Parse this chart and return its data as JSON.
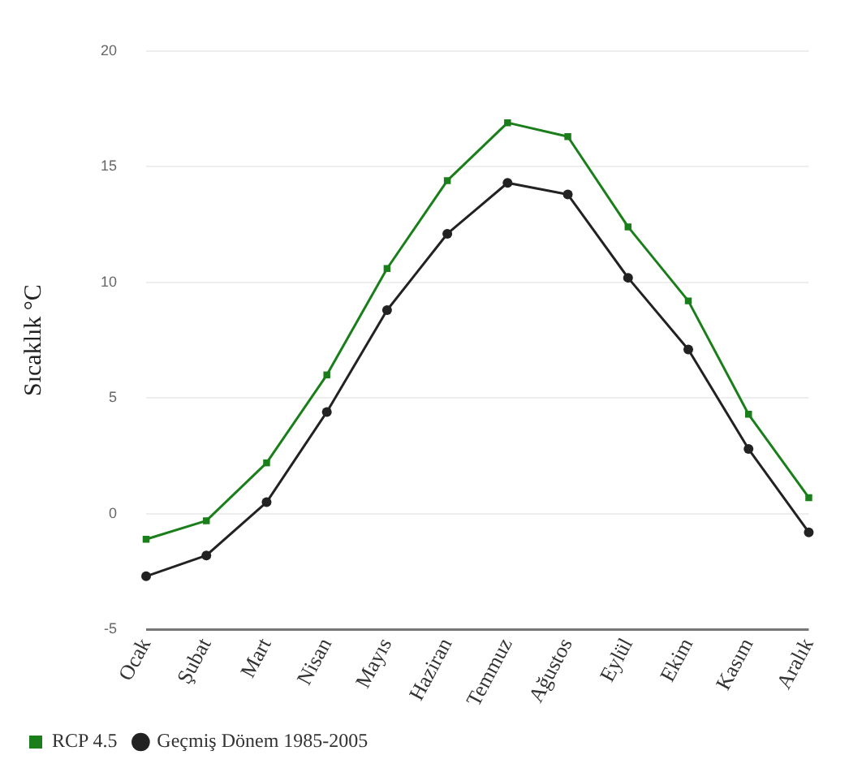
{
  "chart_data": {
    "type": "line",
    "ylabel": "Sıcaklık °C",
    "categories": [
      "Ocak",
      "Şubat",
      "Mart",
      "Nisan",
      "Mayıs",
      "Haziran",
      "Temmuz",
      "Ağustos",
      "Eylül",
      "Ekim",
      "Kasım",
      "Aralık"
    ],
    "series": [
      {
        "name": "RCP 4.5",
        "color": "#1a7f1a",
        "marker": "square",
        "values": [
          -1.1,
          -0.3,
          2.2,
          6.0,
          10.6,
          14.4,
          16.9,
          16.3,
          12.4,
          9.2,
          4.3,
          0.7
        ]
      },
      {
        "name": "Geçmiş Dönem 1985-2005",
        "color": "#222222",
        "marker": "circle",
        "values": [
          -2.7,
          -1.8,
          0.5,
          4.4,
          8.8,
          12.1,
          14.3,
          13.8,
          10.2,
          7.1,
          2.8,
          -0.8
        ]
      }
    ],
    "ylim": [
      -5,
      20
    ],
    "yticks": [
      -5,
      0,
      5,
      10,
      15,
      20
    ],
    "grid": "y",
    "legend": "bottom left",
    "line_style": "solid"
  }
}
